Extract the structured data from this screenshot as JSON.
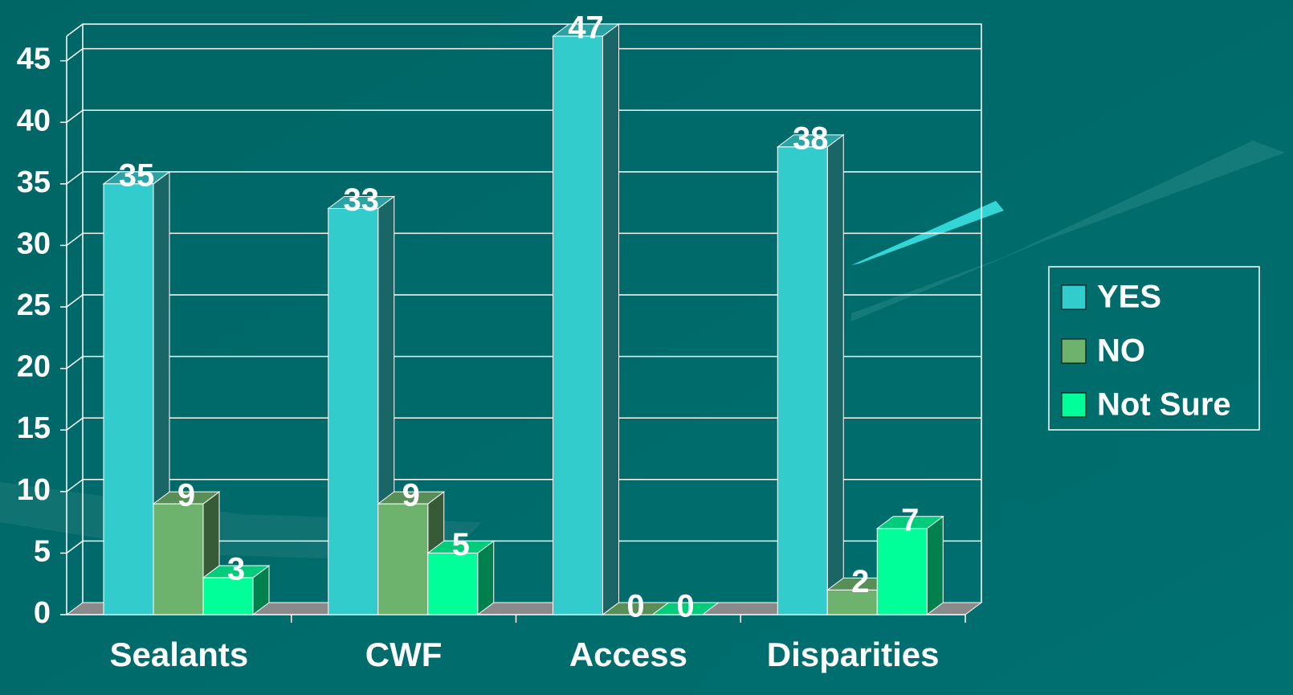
{
  "chart_data": {
    "type": "bar3d",
    "categories": [
      "Sealants",
      "CWF",
      "Access",
      "Disparities"
    ],
    "series": [
      {
        "name": "YES",
        "color": "#33cccc",
        "values": [
          35,
          33,
          47,
          38
        ]
      },
      {
        "name": "NO",
        "color": "#6db36d",
        "values": [
          9,
          9,
          0,
          2
        ]
      },
      {
        "name": "Not Sure",
        "color": "#00ff99",
        "values": [
          3,
          5,
          0,
          7
        ]
      }
    ],
    "ylim": [
      0,
      47
    ],
    "yticks": [
      0,
      5,
      10,
      15,
      20,
      25,
      30,
      35,
      40,
      45
    ],
    "grid": true,
    "legend": "right"
  }
}
